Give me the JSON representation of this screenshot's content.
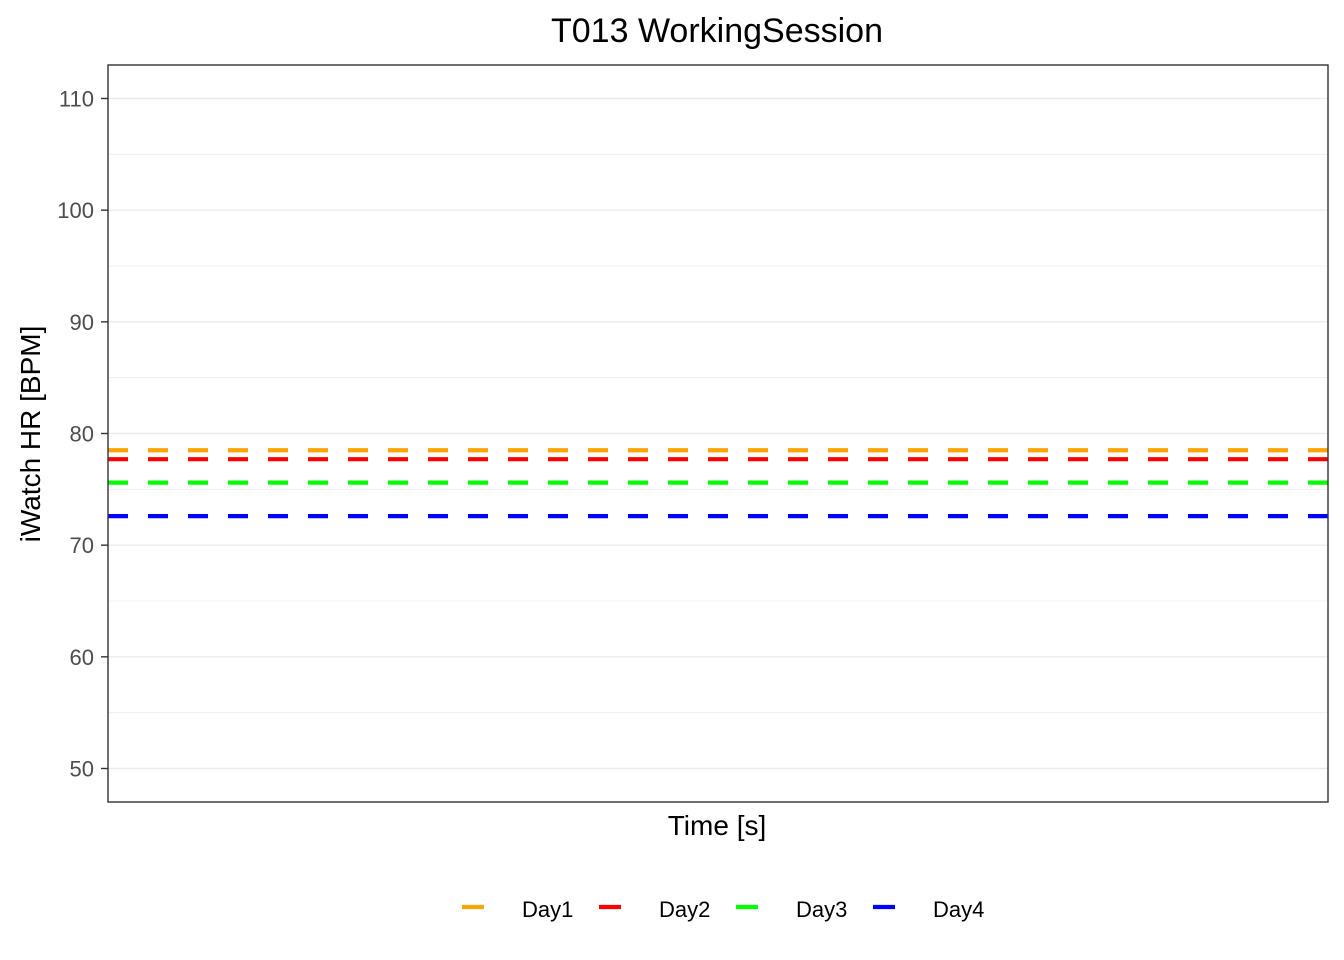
{
  "chart_data": {
    "type": "line",
    "title": "T013 WorkingSession",
    "xlabel": "Time [s]",
    "ylabel": "iWatch HR [BPM]",
    "ylim": [
      47,
      113
    ],
    "yticks": [
      50,
      60,
      70,
      80,
      90,
      100,
      110
    ],
    "grid": true,
    "legend_position": "bottom",
    "series": [
      {
        "name": "Day1",
        "color": "#FFA500",
        "style": "dashed",
        "value": 78.5
      },
      {
        "name": "Day2",
        "color": "#FF0000",
        "style": "dashed",
        "value": 77.7
      },
      {
        "name": "Day3",
        "color": "#00FF00",
        "style": "dashed",
        "value": 75.6
      },
      {
        "name": "Day4",
        "color": "#0000FF",
        "style": "dashed",
        "value": 72.6
      }
    ]
  }
}
